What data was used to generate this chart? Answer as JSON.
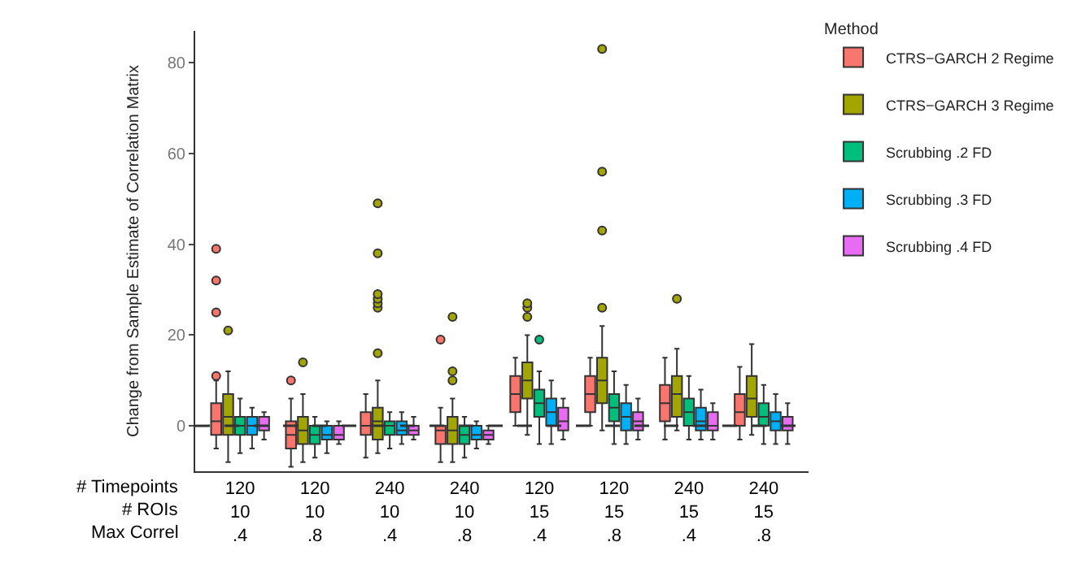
{
  "chart_data": {
    "type": "box",
    "ylabel": "Change from Sample Estimate of Correlation Matrix",
    "legend_title": "Method",
    "categories": [
      "120\n10\n.4",
      "120\n10\n.8",
      "240\n10\n.4",
      "240\n10\n.8",
      "120\n15\n.4",
      "120\n15\n.8",
      "240\n15\n.4",
      "240\n15\n.8"
    ],
    "annotations": [
      "# Timepoints",
      "# ROIs",
      "Max Correl"
    ],
    "ylim": [
      -10,
      87
    ],
    "yticks": [
      0,
      20,
      40,
      60,
      80
    ],
    "ref_lines": [
      {
        "axis": "y",
        "value": 0,
        "line_style": "dashed",
        "color": "#333333"
      }
    ],
    "legend": "right",
    "series": [
      {
        "name": "CTRS−GARCH 2 Regime",
        "color": "#f8766d",
        "boxes": [
          {
            "low": -5,
            "q1": -2,
            "median": 1,
            "q3": 5,
            "high": 10,
            "outliers": [
              11,
              25,
              32,
              39
            ]
          },
          {
            "low": -9,
            "q1": -5,
            "median": -2,
            "q3": 1,
            "high": 6,
            "outliers": [
              10
            ]
          },
          {
            "low": -7,
            "q1": -2,
            "median": 0,
            "q3": 3,
            "high": 7
          },
          {
            "low": -8,
            "q1": -4,
            "median": -1,
            "q3": 0,
            "high": 4,
            "outliers": [
              19
            ]
          },
          {
            "low": 0,
            "q1": 3,
            "median": 7,
            "q3": 11,
            "high": 15
          },
          {
            "low": 0,
            "q1": 3,
            "median": 7,
            "q3": 11,
            "high": 15
          },
          {
            "low": -3,
            "q1": 1,
            "median": 5,
            "q3": 9,
            "high": 15
          },
          {
            "low": -3,
            "q1": 0,
            "median": 3,
            "q3": 7,
            "high": 13
          }
        ]
      },
      {
        "name": "CTRS−GARCH 3 Regime",
        "color": "#a3a500",
        "boxes": [
          {
            "low": -8,
            "q1": -2,
            "median": 2,
            "q3": 7,
            "high": 12,
            "outliers": [
              21
            ]
          },
          {
            "low": -8,
            "q1": -4,
            "median": -1,
            "q3": 2,
            "high": 7,
            "outliers": [
              14
            ]
          },
          {
            "low": -6,
            "q1": -3,
            "median": 1,
            "q3": 4,
            "high": 10,
            "outliers": [
              16,
              26,
              27,
              28,
              29,
              38,
              49
            ]
          },
          {
            "low": -8,
            "q1": -4,
            "median": -1,
            "q3": 2,
            "high": 6,
            "outliers": [
              10,
              12,
              24
            ]
          },
          {
            "low": -2,
            "q1": 6,
            "median": 10,
            "q3": 14,
            "high": 20,
            "outliers": [
              24,
              26,
              27
            ]
          },
          {
            "low": -1,
            "q1": 5,
            "median": 10,
            "q3": 15,
            "high": 22,
            "outliers": [
              26,
              43,
              56,
              83
            ]
          },
          {
            "low": -1,
            "q1": 2,
            "median": 7,
            "q3": 11,
            "high": 17,
            "outliers": [
              28
            ]
          },
          {
            "low": -2,
            "q1": 2,
            "median": 6,
            "q3": 11,
            "high": 18
          }
        ]
      },
      {
        "name": "Scrubbing .2 FD",
        "color": "#00bf7d",
        "boxes": [
          {
            "low": -6,
            "q1": -2,
            "median": 0,
            "q3": 2,
            "high": 6
          },
          {
            "low": -7,
            "q1": -4,
            "median": -2,
            "q3": 0,
            "high": 2
          },
          {
            "low": -5,
            "q1": -2,
            "median": 0,
            "q3": 1,
            "high": 3
          },
          {
            "low": -7,
            "q1": -4,
            "median": -2,
            "q3": 0,
            "high": 2
          },
          {
            "low": -4,
            "q1": 2,
            "median": 5,
            "q3": 8,
            "high": 12,
            "outliers": [
              19
            ]
          },
          {
            "low": -4,
            "q1": 1,
            "median": 4,
            "q3": 7,
            "high": 12
          },
          {
            "low": -3,
            "q1": 0,
            "median": 3,
            "q3": 6,
            "high": 11
          },
          {
            "low": -4,
            "q1": 0,
            "median": 2,
            "q3": 5,
            "high": 9
          }
        ]
      },
      {
        "name": "Scrubbing .3 FD",
        "color": "#00b0f6",
        "boxes": [
          {
            "low": -5,
            "q1": -2,
            "median": 0,
            "q3": 2,
            "high": 4
          },
          {
            "low": -6,
            "q1": -3,
            "median": -2,
            "q3": 0,
            "high": 1
          },
          {
            "low": -4,
            "q1": -2,
            "median": -1,
            "q3": 1,
            "high": 3
          },
          {
            "low": -5,
            "q1": -3,
            "median": -2,
            "q3": 0,
            "high": 1
          },
          {
            "low": -4,
            "q1": 0,
            "median": 3,
            "q3": 6,
            "high": 10
          },
          {
            "low": -4,
            "q1": -1,
            "median": 2,
            "q3": 5,
            "high": 9
          },
          {
            "low": -3,
            "q1": -1,
            "median": 1,
            "q3": 4,
            "high": 8
          },
          {
            "low": -4,
            "q1": -1,
            "median": 1,
            "q3": 3,
            "high": 7
          }
        ]
      },
      {
        "name": "Scrubbing .4 FD",
        "color": "#e76bf3",
        "boxes": [
          {
            "low": -3,
            "q1": -1,
            "median": 0,
            "q3": 2,
            "high": 3
          },
          {
            "low": -4,
            "q1": -3,
            "median": -2,
            "q3": 0,
            "high": 1
          },
          {
            "low": -3,
            "q1": -2,
            "median": -1,
            "q3": 0,
            "high": 2
          },
          {
            "low": -4,
            "q1": -3,
            "median": -2,
            "q3": -1,
            "high": 0
          },
          {
            "low": -3,
            "q1": -1,
            "median": 1,
            "q3": 4,
            "high": 6
          },
          {
            "low": -3,
            "q1": -1,
            "median": 1,
            "q3": 3,
            "high": 6
          },
          {
            "low": -3,
            "q1": -1,
            "median": 0,
            "q3": 3,
            "high": 5
          },
          {
            "low": -4,
            "q1": -1,
            "median": 0,
            "q3": 2,
            "high": 5
          }
        ]
      }
    ]
  }
}
